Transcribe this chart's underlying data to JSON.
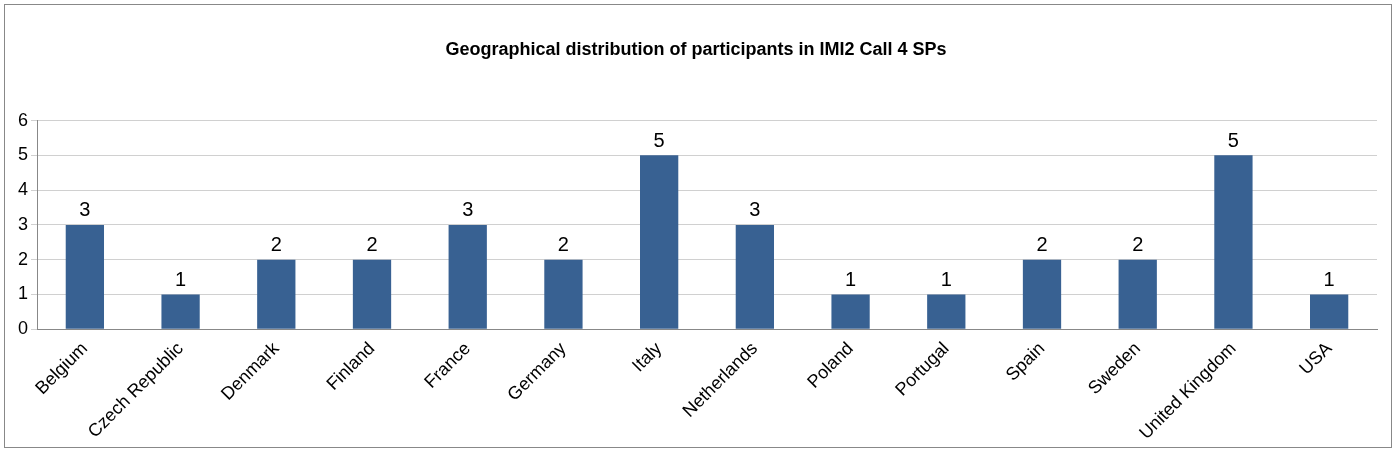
{
  "chart_data": {
    "type": "bar",
    "title": "Geographical distribution of participants in IMI2 Call 4 SPs",
    "categories": [
      "Belgium",
      "Czech Republic",
      "Denmark",
      "Finland",
      "France",
      "Germany",
      "Italy",
      "Netherlands",
      "Poland",
      "Portugal",
      "Spain",
      "Sweden",
      "United Kingdom",
      "USA"
    ],
    "values": [
      3,
      1,
      2,
      2,
      3,
      2,
      5,
      3,
      1,
      1,
      2,
      2,
      5,
      1
    ],
    "color": "#386192",
    "ylim": [
      0,
      6
    ],
    "yticks": [
      0,
      1,
      2,
      3,
      4,
      5,
      6
    ],
    "grid": "y",
    "data_labels": true,
    "legend": false
  }
}
